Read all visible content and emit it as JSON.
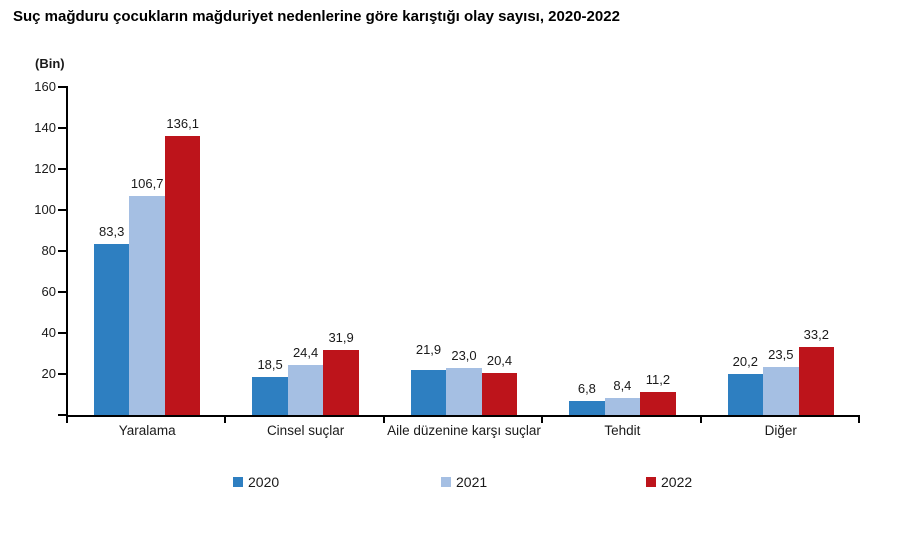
{
  "title": "Suç mağduru çocukların mağduriyet nedenlerine göre karıştığı olay sayısı, 2020-2022",
  "chart_data": {
    "type": "bar",
    "unit_label": "(Bin)",
    "title": "Suç mağduru çocukların mağduriyet nedenlerine göre karıştığı olay sayısı, 2020-2022",
    "categories": [
      "Yaralama",
      "Cinsel suçlar",
      "Aile düzenine karşı suçlar",
      "Tehdit",
      "Diğer"
    ],
    "series": [
      {
        "name": "2020",
        "color": "#2e7fc1",
        "values": [
          83.3,
          18.5,
          21.9,
          6.8,
          20.2
        ],
        "labels": [
          "83,3",
          "18,5",
          "21,9",
          "6,8",
          "20,2"
        ]
      },
      {
        "name": "2021",
        "color": "#a5bfe3",
        "values": [
          106.7,
          24.4,
          23.0,
          8.4,
          23.5
        ],
        "labels": [
          "106,7",
          "24,4",
          "23,0",
          "8,4",
          "23,5"
        ]
      },
      {
        "name": "2022",
        "color": "#bd141b",
        "values": [
          136.1,
          31.9,
          20.4,
          11.2,
          33.2
        ],
        "labels": [
          "136,1",
          "31,9",
          "20,4",
          "11,2",
          "33,2"
        ]
      }
    ],
    "ylim": [
      0,
      160
    ],
    "ytick_step": 20,
    "ytick_labels": [
      "20",
      "40",
      "60",
      "80",
      "100",
      "120",
      "140",
      "160"
    ],
    "grid": false,
    "legend_position": "bottom",
    "axis_color": "#000000"
  }
}
